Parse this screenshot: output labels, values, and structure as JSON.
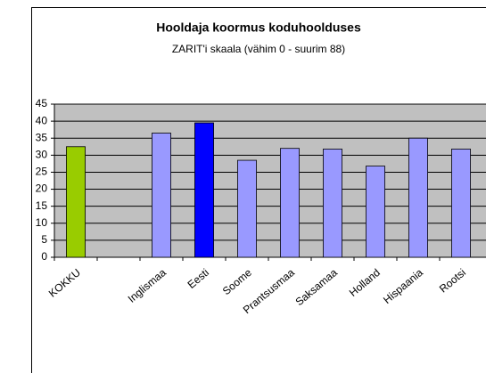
{
  "chart_data": {
    "type": "bar",
    "title": "Hooldaja koormus koduhoolduses",
    "subtitle": "ZARIT'i skaala (vähim 0 - suurim 88)",
    "categories": [
      "KOKKU",
      null,
      "Inglismaa",
      "Eesti",
      "Soome",
      "Prantsusmaa",
      "Saksamaa",
      "Holland",
      "Hispaania",
      "Rootsi"
    ],
    "values": [
      32.5,
      null,
      36.5,
      39.5,
      28.5,
      32,
      31.8,
      26.8,
      35,
      31.8
    ],
    "colors": [
      "#99cc00",
      "#9999ff",
      "#9999ff",
      "#0000ff",
      "#9999ff",
      "#9999ff",
      "#9999ff",
      "#9999ff",
      "#9999ff",
      "#9999ff"
    ],
    "ylim": [
      0,
      45
    ],
    "yticks": [
      0,
      5,
      10,
      15,
      20,
      25,
      30,
      35,
      40,
      45
    ],
    "grid": true
  }
}
